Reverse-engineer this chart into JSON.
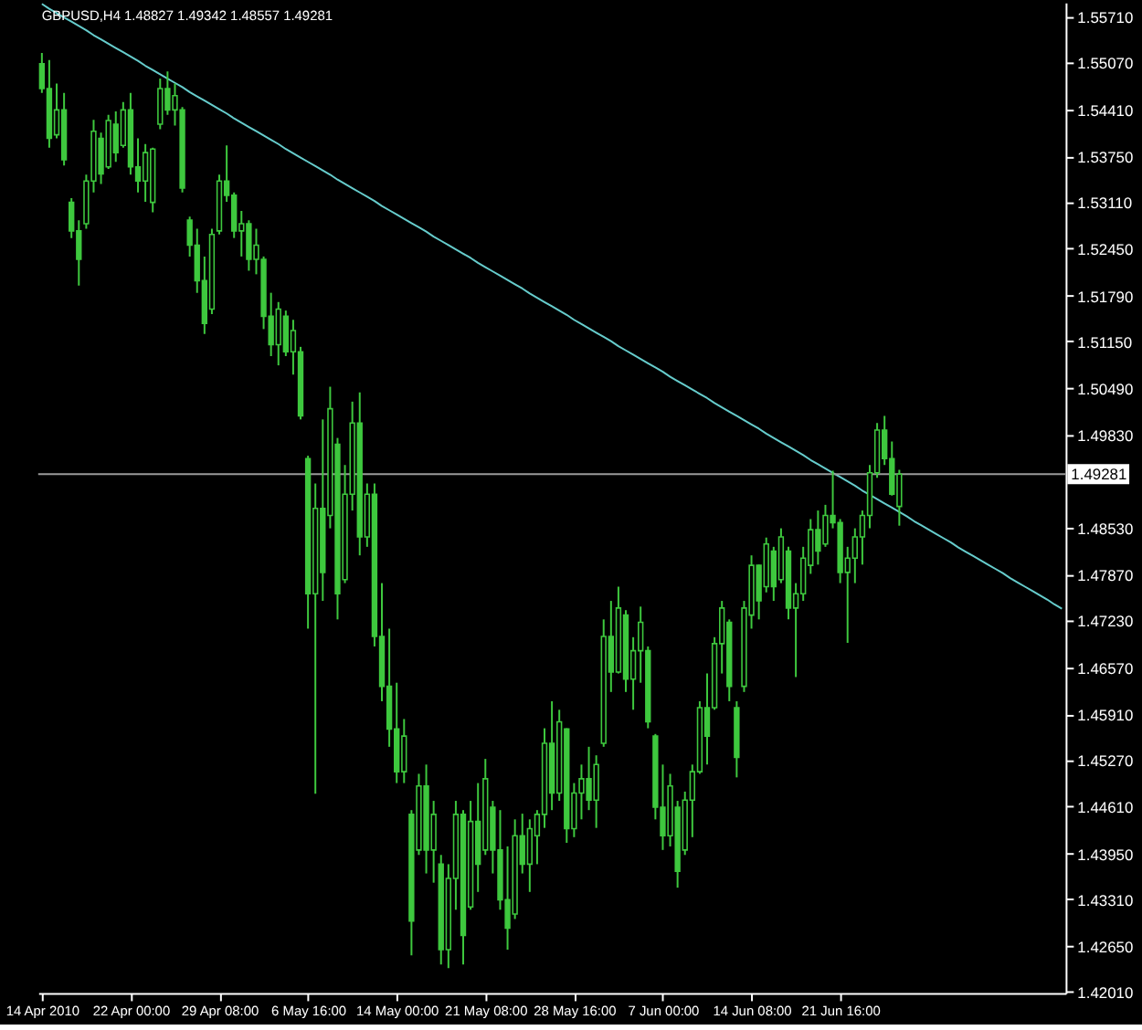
{
  "chart_data": {
    "type": "candlestick",
    "title": "GBPUSD,H4 1.48827 1.49342 1.48557 1.49281",
    "color": "#3ec83e",
    "categories": [
      "14 Apr 2010",
      null,
      null,
      null,
      null,
      null,
      null,
      null,
      null,
      null,
      null,
      null,
      "22 Apr 00:00",
      null,
      null,
      null,
      null,
      null,
      null,
      null,
      null,
      null,
      null,
      null,
      "29 Apr 08:00",
      null,
      null,
      null,
      null,
      null,
      null,
      null,
      null,
      null,
      null,
      null,
      "6 May 16:00",
      null,
      null,
      null,
      null,
      null,
      null,
      null,
      null,
      null,
      null,
      null,
      "14 May 00:00",
      null,
      null,
      null,
      null,
      null,
      null,
      null,
      null,
      null,
      null,
      null,
      "21 May 08:00",
      null,
      null,
      null,
      null,
      null,
      null,
      null,
      null,
      null,
      null,
      null,
      "28 May 16:00",
      null,
      null,
      null,
      null,
      null,
      null,
      null,
      null,
      null,
      null,
      null,
      "7 Jun 00:00",
      null,
      null,
      null,
      null,
      null,
      null,
      null,
      null,
      null,
      null,
      null,
      "14 Jun 08:00",
      null,
      null,
      null,
      null,
      null,
      null,
      null,
      null,
      null,
      null,
      null,
      "21 Jun 16:00",
      null,
      null,
      null,
      null,
      null,
      null,
      null,
      null,
      null,
      null,
      null,
      null,
      null,
      null,
      null,
      null,
      null,
      null,
      null,
      null,
      null,
      null,
      null,
      null,
      null,
      null,
      null,
      null,
      null,
      null
    ],
    "ohlc": [
      [
        1.5505,
        1.552,
        1.5464,
        1.547
      ],
      [
        1.547,
        1.551,
        1.5387,
        1.54
      ],
      [
        1.5405,
        1.5477,
        1.54,
        1.544
      ],
      [
        1.544,
        1.5464,
        1.5362,
        1.537
      ],
      [
        1.531,
        1.5316,
        1.526,
        1.527
      ],
      [
        1.527,
        1.5285,
        1.5193,
        1.523
      ],
      [
        1.528,
        1.5349,
        1.5273,
        1.534
      ],
      [
        1.534,
        1.5426,
        1.5324,
        1.541
      ],
      [
        1.54,
        1.5408,
        1.5336,
        1.535
      ],
      [
        1.536,
        1.5433,
        1.5357,
        1.5425
      ],
      [
        1.542,
        1.5438,
        1.5367,
        1.538
      ],
      [
        1.539,
        1.5451,
        1.5387,
        1.544
      ],
      [
        1.544,
        1.5464,
        1.5349,
        1.536
      ],
      [
        1.536,
        1.54,
        1.5324,
        1.534
      ],
      [
        1.534,
        1.5392,
        1.5311,
        1.538
      ],
      [
        1.531,
        1.5387,
        1.5296,
        1.5385
      ],
      [
        1.542,
        1.5484,
        1.5413,
        1.547
      ],
      [
        1.547,
        1.5494,
        1.5433,
        1.544
      ],
      [
        1.544,
        1.5477,
        1.5418,
        1.546
      ],
      [
        1.544,
        1.5444,
        1.5324,
        1.533
      ],
      [
        1.5285,
        1.529,
        1.5234,
        1.525
      ],
      [
        1.525,
        1.5273,
        1.5183,
        1.52
      ],
      [
        1.52,
        1.5234,
        1.5125,
        1.514
      ],
      [
        1.516,
        1.5273,
        1.5153,
        1.5265
      ],
      [
        1.527,
        1.5349,
        1.5265,
        1.534
      ],
      [
        1.534,
        1.539,
        1.5311,
        1.532
      ],
      [
        1.532,
        1.5324,
        1.526,
        1.527
      ],
      [
        1.527,
        1.5298,
        1.5234,
        1.528
      ],
      [
        1.528,
        1.5285,
        1.5214,
        1.523
      ],
      [
        1.523,
        1.5273,
        1.5209,
        1.525
      ],
      [
        1.523,
        1.5234,
        1.5132,
        1.515
      ],
      [
        1.515,
        1.5183,
        1.5094,
        1.511
      ],
      [
        1.511,
        1.517,
        1.5081,
        1.516
      ],
      [
        1.515,
        1.5158,
        1.5094,
        1.51
      ],
      [
        1.51,
        1.5145,
        1.5068,
        1.513
      ],
      [
        1.51,
        1.5107,
        1.5005,
        1.501
      ],
      [
        1.495,
        1.4954,
        1.4711,
        1.476
      ],
      [
        1.476,
        1.4915,
        1.4479,
        1.488
      ],
      [
        1.488,
        1.5005,
        1.475,
        1.479
      ],
      [
        1.487,
        1.5051,
        1.4852,
        1.502
      ],
      [
        1.497,
        1.4979,
        1.4724,
        1.476
      ],
      [
        1.478,
        1.4941,
        1.4775,
        1.49
      ],
      [
        1.49,
        1.503,
        1.4877,
        1.5
      ],
      [
        1.5,
        1.5043,
        1.4814,
        1.484
      ],
      [
        1.484,
        1.4915,
        1.4826,
        1.49
      ],
      [
        1.49,
        1.4915,
        1.4686,
        1.47
      ],
      [
        1.47,
        1.4775,
        1.4609,
        1.463
      ],
      [
        1.463,
        1.4711,
        1.4545,
        1.457
      ],
      [
        1.457,
        1.4635,
        1.4494,
        1.451
      ],
      [
        1.451,
        1.4584,
        1.4494,
        1.456
      ],
      [
        1.445,
        1.4456,
        1.4252,
        1.43
      ],
      [
        1.44,
        1.4507,
        1.4393,
        1.449
      ],
      [
        1.449,
        1.452,
        1.4367,
        1.44
      ],
      [
        1.44,
        1.4469,
        1.4354,
        1.445
      ],
      [
        1.438,
        1.4393,
        1.4239,
        1.426
      ],
      [
        1.426,
        1.438,
        1.4234,
        1.436
      ],
      [
        1.436,
        1.4469,
        1.4316,
        1.445
      ],
      [
        1.445,
        1.4456,
        1.4239,
        1.428
      ],
      [
        1.432,
        1.4469,
        1.4316,
        1.444
      ],
      [
        1.444,
        1.4494,
        1.4341,
        1.438
      ],
      [
        1.44,
        1.4528,
        1.4393,
        1.45
      ],
      [
        1.446,
        1.4469,
        1.4367,
        1.44
      ],
      [
        1.44,
        1.4456,
        1.4316,
        1.433
      ],
      [
        1.433,
        1.4405,
        1.426,
        1.429
      ],
      [
        1.431,
        1.4443,
        1.4303,
        1.442
      ],
      [
        1.442,
        1.4451,
        1.4367,
        1.438
      ],
      [
        1.438,
        1.4443,
        1.4341,
        1.443
      ],
      [
        1.442,
        1.4456,
        1.438,
        1.445
      ],
      [
        1.445,
        1.4571,
        1.4431,
        1.455
      ],
      [
        1.455,
        1.4609,
        1.4456,
        1.448
      ],
      [
        1.448,
        1.4597,
        1.4469,
        1.458
      ],
      [
        1.457,
        1.4571,
        1.441,
        1.443
      ],
      [
        1.443,
        1.4494,
        1.4418,
        1.448
      ],
      [
        1.448,
        1.452,
        1.4443,
        1.45
      ],
      [
        1.45,
        1.4545,
        1.4456,
        1.447
      ],
      [
        1.447,
        1.4533,
        1.4431,
        1.452
      ],
      [
        1.455,
        1.4724,
        1.4545,
        1.47
      ],
      [
        1.47,
        1.475,
        1.4622,
        1.465
      ],
      [
        1.465,
        1.477,
        1.4648,
        1.474
      ],
      [
        1.473,
        1.4737,
        1.4622,
        1.464
      ],
      [
        1.464,
        1.4699,
        1.4597,
        1.468
      ],
      [
        1.468,
        1.4742,
        1.4635,
        1.472
      ],
      [
        1.468,
        1.4686,
        1.4571,
        1.458
      ],
      [
        1.456,
        1.4563,
        1.4443,
        1.446
      ],
      [
        1.446,
        1.452,
        1.44,
        1.442
      ],
      [
        1.442,
        1.4507,
        1.4405,
        1.449
      ],
      [
        1.446,
        1.4469,
        1.4347,
        1.437
      ],
      [
        1.44,
        1.4482,
        1.4393,
        1.447
      ],
      [
        1.447,
        1.452,
        1.4418,
        1.451
      ],
      [
        1.451,
        1.4609,
        1.4507,
        1.46
      ],
      [
        1.46,
        1.4648,
        1.452,
        1.456
      ],
      [
        1.46,
        1.4699,
        1.4597,
        1.469
      ],
      [
        1.469,
        1.475,
        1.4648,
        1.474
      ],
      [
        1.472,
        1.4724,
        1.4609,
        1.463
      ],
      [
        1.46,
        1.4609,
        1.4502,
        1.453
      ],
      [
        1.463,
        1.475,
        1.4622,
        1.474
      ],
      [
        1.473,
        1.4814,
        1.4711,
        1.48
      ],
      [
        1.48,
        1.4801,
        1.4724,
        1.475
      ],
      [
        1.477,
        1.4839,
        1.4762,
        1.483
      ],
      [
        1.482,
        1.4826,
        1.475,
        1.477
      ],
      [
        1.478,
        1.4852,
        1.4775,
        1.484
      ],
      [
        1.482,
        1.4826,
        1.4724,
        1.474
      ],
      [
        1.474,
        1.4775,
        1.4643,
        1.476
      ],
      [
        1.476,
        1.4826,
        1.475,
        1.481
      ],
      [
        1.48,
        1.4865,
        1.4788,
        1.485
      ],
      [
        1.485,
        1.4877,
        1.4801,
        1.482
      ],
      [
        1.483,
        1.4885,
        1.4826,
        1.487
      ],
      [
        1.487,
        1.4933,
        1.4852,
        1.486
      ],
      [
        1.486,
        1.4865,
        1.4775,
        1.479
      ],
      [
        1.479,
        1.4826,
        1.4691,
        1.481
      ],
      [
        1.481,
        1.4852,
        1.4775,
        1.484
      ],
      [
        1.484,
        1.4877,
        1.4801,
        1.487
      ],
      [
        1.487,
        1.4941,
        1.4852,
        1.493
      ],
      [
        1.493,
        1.5,
        1.4923,
        1.499
      ],
      [
        1.499,
        1.501,
        1.4941,
        1.495
      ],
      [
        1.495,
        1.4974,
        1.4898,
        1.49
      ],
      [
        1.48827,
        1.49342,
        1.48557,
        1.49281
      ],
      null,
      null,
      null,
      null,
      null,
      null,
      null,
      null,
      null,
      null,
      null,
      null,
      null,
      null,
      null,
      null,
      null,
      null,
      null,
      null,
      null,
      null
    ],
    "series": [
      {
        "type": "line",
        "color": "#66cccc",
        "values": [
          1.5589,
          1.5582,
          1.5576,
          1.557,
          1.5564,
          1.5558,
          1.5552,
          1.5545,
          1.5539,
          1.5533,
          1.5527,
          1.5521,
          1.5515,
          1.5509,
          1.5502,
          1.5496,
          1.549,
          1.5484,
          1.5478,
          1.5472,
          1.5465,
          1.5459,
          1.5453,
          1.5447,
          1.5441,
          1.5435,
          1.5428,
          1.5422,
          1.5416,
          1.541,
          1.5404,
          1.5398,
          1.5392,
          1.5385,
          1.5379,
          1.5373,
          1.5367,
          1.5361,
          1.5355,
          1.5349,
          1.5342,
          1.5336,
          1.533,
          1.5324,
          1.5318,
          1.5312,
          1.5305,
          1.5299,
          1.5293,
          1.5287,
          1.5281,
          1.5275,
          1.5269,
          1.5262,
          1.5256,
          1.525,
          1.5244,
          1.5238,
          1.5232,
          1.5225,
          1.5219,
          1.5213,
          1.5207,
          1.5201,
          1.5195,
          1.5189,
          1.5182,
          1.5176,
          1.517,
          1.5164,
          1.5158,
          1.5152,
          1.5145,
          1.5139,
          1.5133,
          1.5127,
          1.5121,
          1.5115,
          1.5108,
          1.5102,
          1.5096,
          1.509,
          1.5084,
          1.5078,
          1.5072,
          1.5065,
          1.5059,
          1.5053,
          1.5047,
          1.5041,
          1.5035,
          1.5028,
          1.5022,
          1.5016,
          1.501,
          1.5004,
          1.4998,
          1.4992,
          1.4985,
          1.4979,
          1.4973,
          1.4967,
          1.4961,
          1.4955,
          1.4948,
          1.4942,
          1.4936,
          1.493,
          1.4924,
          1.4918,
          1.4912,
          1.4905,
          1.4899,
          1.4893,
          1.4887,
          1.4881,
          1.4875,
          1.4869,
          1.4862,
          1.4856,
          1.485,
          1.4844,
          1.4838,
          1.4832,
          1.4825,
          1.4819,
          1.4813,
          1.4807,
          1.4801,
          1.4795,
          1.4789,
          1.4782,
          1.4776,
          1.477,
          1.4764,
          1.4758,
          1.4752,
          1.4745,
          1.4739
        ]
      }
    ],
    "ref_lines": [
      {
        "axis": "y",
        "value": 1.49281,
        "label": "1.49281",
        "color": "#9a9a9a"
      }
    ],
    "ylim": [
      1.4199,
      1.5591
    ],
    "yticks": [
      {
        "value": 1.5571,
        "label": "1.55710"
      },
      {
        "value": 1.5507,
        "label": "1.55070"
      },
      {
        "value": 1.5441,
        "label": "1.54410"
      },
      {
        "value": 1.5375,
        "label": "1.53750"
      },
      {
        "value": 1.5311,
        "label": "1.53110"
      },
      {
        "value": 1.5245,
        "label": "1.52450"
      },
      {
        "value": 1.5179,
        "label": "1.51790"
      },
      {
        "value": 1.5115,
        "label": "1.51150"
      },
      {
        "value": 1.5049,
        "label": "1.50490"
      },
      {
        "value": 1.4983,
        "label": "1.49830"
      },
      {
        "value": 1.4853,
        "label": "1.48530"
      },
      {
        "value": 1.4787,
        "label": "1.47870"
      },
      {
        "value": 1.4723,
        "label": "1.47230"
      },
      {
        "value": 1.4657,
        "label": "1.46570"
      },
      {
        "value": 1.4591,
        "label": "1.45910"
      },
      {
        "value": 1.4527,
        "label": "1.45270"
      },
      {
        "value": 1.4461,
        "label": "1.44610"
      },
      {
        "value": 1.4395,
        "label": "1.43950"
      },
      {
        "value": 1.4331,
        "label": "1.43310"
      },
      {
        "value": 1.4265,
        "label": "1.42650"
      },
      {
        "value": 1.4201,
        "label": "1.42010"
      }
    ]
  }
}
